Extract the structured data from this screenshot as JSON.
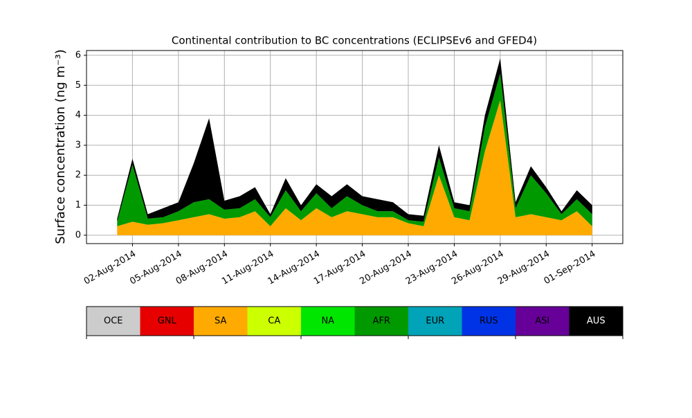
{
  "chart_data": {
    "type": "stacked-area",
    "title": "Continental contribution to BC concentrations (ECLIPSEv6 and GFED4)",
    "ylabel": "Surface concentration (ng m⁻³)",
    "x": [
      "01-Aug-2014",
      "02-Aug-2014",
      "03-Aug-2014",
      "04-Aug-2014",
      "05-Aug-2014",
      "06-Aug-2014",
      "07-Aug-2014",
      "08-Aug-2014",
      "09-Aug-2014",
      "10-Aug-2014",
      "11-Aug-2014",
      "12-Aug-2014",
      "13-Aug-2014",
      "14-Aug-2014",
      "15-Aug-2014",
      "16-Aug-2014",
      "17-Aug-2014",
      "18-Aug-2014",
      "19-Aug-2014",
      "20-Aug-2014",
      "21-Aug-2014",
      "22-Aug-2014",
      "23-Aug-2014",
      "24-Aug-2014",
      "25-Aug-2014",
      "26-Aug-2014",
      "27-Aug-2014",
      "28-Aug-2014",
      "29-Aug-2014",
      "30-Aug-2014",
      "31-Aug-2014",
      "01-Sep-2014"
    ],
    "xlim": [
      "30-Jul-2014",
      "03-Sep-2014"
    ],
    "xticks": [
      "02-Aug-2014",
      "05-Aug-2014",
      "08-Aug-2014",
      "11-Aug-2014",
      "14-Aug-2014",
      "17-Aug-2014",
      "20-Aug-2014",
      "23-Aug-2014",
      "26-Aug-2014",
      "29-Aug-2014",
      "01-Sep-2014"
    ],
    "ylim": [
      -0.28,
      6.16
    ],
    "yticks": [
      0,
      1,
      2,
      3,
      4,
      5,
      6
    ],
    "grid": true,
    "series": [
      {
        "name": "OCE",
        "color": "#cccccc",
        "values": [
          0,
          0,
          0,
          0,
          0,
          0,
          0,
          0,
          0,
          0,
          0,
          0,
          0,
          0,
          0,
          0,
          0,
          0,
          0,
          0,
          0,
          0,
          0,
          0,
          0,
          0,
          0,
          0,
          0,
          0,
          0,
          0
        ]
      },
      {
        "name": "GNL",
        "color": "#e60000",
        "values": [
          0,
          0,
          0,
          0,
          0,
          0,
          0,
          0,
          0,
          0,
          0,
          0,
          0,
          0,
          0,
          0,
          0,
          0,
          0,
          0,
          0,
          0,
          0,
          0,
          0,
          0,
          0,
          0,
          0,
          0,
          0,
          0
        ]
      },
      {
        "name": "SA",
        "color": "#ffaa00",
        "values": [
          0.3,
          0.45,
          0.35,
          0.4,
          0.5,
          0.6,
          0.7,
          0.55,
          0.6,
          0.8,
          0.3,
          0.9,
          0.5,
          0.9,
          0.6,
          0.8,
          0.7,
          0.6,
          0.6,
          0.4,
          0.3,
          2.0,
          0.6,
          0.5,
          2.8,
          4.5,
          0.6,
          0.7,
          0.6,
          0.5,
          0.8,
          0.3
        ]
      },
      {
        "name": "CA",
        "color": "#ccff00",
        "values": [
          0,
          0,
          0,
          0,
          0,
          0,
          0,
          0,
          0,
          0,
          0,
          0,
          0,
          0,
          0,
          0,
          0,
          0,
          0,
          0,
          0,
          0,
          0,
          0,
          0,
          0,
          0,
          0,
          0,
          0,
          0,
          0
        ]
      },
      {
        "name": "NA",
        "color": "#00e600",
        "values": [
          0,
          0,
          0,
          0,
          0,
          0,
          0,
          0,
          0,
          0,
          0,
          0,
          0,
          0,
          0,
          0,
          0,
          0,
          0,
          0,
          0,
          0,
          0,
          0,
          0,
          0,
          0,
          0,
          0,
          0,
          0,
          0
        ]
      },
      {
        "name": "AFR",
        "color": "#009900",
        "values": [
          0.15,
          1.9,
          0.2,
          0.2,
          0.3,
          0.5,
          0.5,
          0.3,
          0.3,
          0.4,
          0.3,
          0.6,
          0.3,
          0.5,
          0.3,
          0.5,
          0.3,
          0.2,
          0.2,
          0.1,
          0.15,
          0.6,
          0.3,
          0.3,
          0.8,
          0.9,
          0.3,
          1.3,
          0.8,
          0.2,
          0.4,
          0.4
        ]
      },
      {
        "name": "EUR",
        "color": "#00a3b8",
        "values": [
          0,
          0,
          0,
          0,
          0,
          0,
          0,
          0,
          0,
          0,
          0,
          0,
          0,
          0,
          0,
          0,
          0,
          0,
          0,
          0,
          0,
          0,
          0,
          0,
          0,
          0,
          0,
          0,
          0,
          0,
          0,
          0
        ]
      },
      {
        "name": "RUS",
        "color": "#0033e6",
        "values": [
          0,
          0,
          0,
          0,
          0,
          0,
          0,
          0,
          0,
          0,
          0,
          0,
          0,
          0,
          0,
          0,
          0,
          0,
          0,
          0,
          0,
          0,
          0,
          0,
          0,
          0,
          0,
          0,
          0,
          0,
          0,
          0
        ]
      },
      {
        "name": "ASI",
        "color": "#660099",
        "values": [
          0,
          0,
          0,
          0,
          0,
          0,
          0,
          0,
          0,
          0,
          0,
          0,
          0,
          0,
          0,
          0,
          0,
          0,
          0,
          0,
          0,
          0,
          0,
          0,
          0,
          0,
          0,
          0,
          0,
          0,
          0,
          0
        ]
      },
      {
        "name": "AUS",
        "color": "#000000",
        "values": [
          0.1,
          0.2,
          0.15,
          0.3,
          0.3,
          1.3,
          2.7,
          0.3,
          0.4,
          0.4,
          0.1,
          0.4,
          0.2,
          0.3,
          0.4,
          0.4,
          0.3,
          0.4,
          0.3,
          0.2,
          0.2,
          0.4,
          0.2,
          0.2,
          0.4,
          0.5,
          0.2,
          0.3,
          0.2,
          0.1,
          0.3,
          0.3
        ]
      }
    ]
  }
}
